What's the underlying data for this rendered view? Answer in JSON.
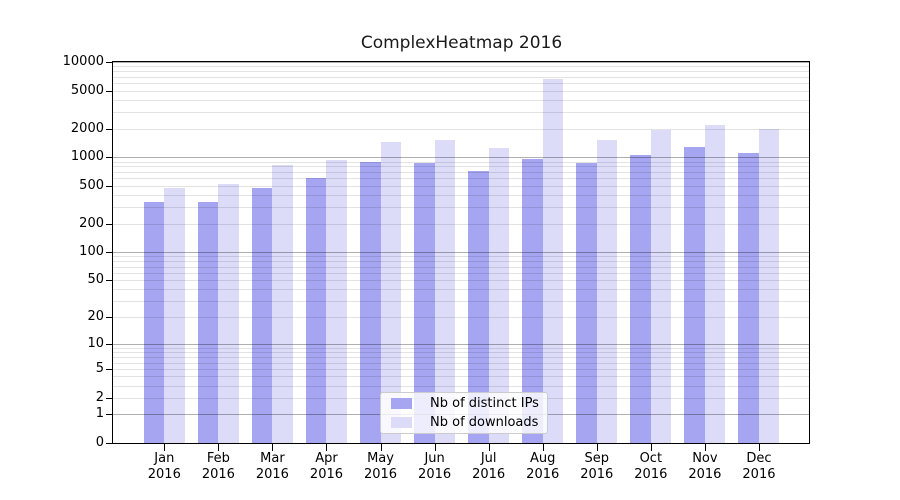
{
  "chart_data": {
    "type": "bar",
    "title": "ComplexHeatmap 2016",
    "categories": [
      "Jan",
      "Feb",
      "Mar",
      "Apr",
      "May",
      "Jun",
      "Jul",
      "Aug",
      "Sep",
      "Oct",
      "Nov",
      "Dec"
    ],
    "category_year": "2016",
    "series": [
      {
        "name": "Nb of distinct IPs",
        "color": "#a5a5f2",
        "values": [
          341,
          336,
          472,
          600,
          884,
          860,
          712,
          949,
          877,
          1052,
          1280,
          1114
        ]
      },
      {
        "name": "Nb of downloads",
        "color": "#dcdcf9",
        "values": [
          474,
          520,
          829,
          945,
          1460,
          1500,
          1245,
          6690,
          1520,
          1950,
          2188,
          1970
        ]
      }
    ],
    "xlabel": "",
    "ylabel": "",
    "yscale": "symlog-log1p",
    "ylim": [
      0,
      10000
    ],
    "ytick_values": [
      0,
      1,
      2,
      5,
      10,
      20,
      50,
      100,
      200,
      500,
      1000,
      2000,
      5000,
      10000
    ],
    "ytick_labels": [
      "0",
      "1",
      "2",
      "5",
      "10",
      "20",
      "50",
      "100",
      "200",
      "500",
      "1000",
      "2000",
      "5000",
      "10000"
    ],
    "grid": "horizontal major (1,10,100,1000,10000) dark grey + minor log subdivisions light grey, drawn over bars",
    "legend_position": "lower center"
  },
  "legend": {
    "items": [
      {
        "label": "Nb of distinct IPs",
        "color": "#a5a5f2"
      },
      {
        "label": "Nb of downloads",
        "color": "#dcdcf9"
      }
    ]
  },
  "colors": {
    "background": "#ffffff",
    "series_ips": "#a5a5f2",
    "series_downloads": "#dcdcf9",
    "grid_major": "#b0b0b0",
    "grid_minor": "#e4e4e4",
    "spine": "#000000",
    "legend_border": "#cccccc"
  }
}
